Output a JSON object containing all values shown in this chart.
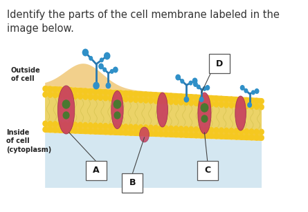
{
  "title_text": "Identify the parts of the cell membrane labeled in the\nimage below.",
  "title_fontsize": 10.5,
  "bg_color": "#ffffff",
  "outside_label": "Outside\nof cell",
  "inside_label": "Inside\nof cell\n(cytoplasm)",
  "cyto_color": "#B8D8E8",
  "membrane_yellow": "#F5C830",
  "membrane_tan": "#F0C870",
  "outer_bg_color": "#F5C878",
  "protein_color": "#C84060",
  "protein_edge": "#A03050",
  "green_color": "#4A7830",
  "glyco_color": "#2878B0",
  "glyco_circle": "#3090C8"
}
